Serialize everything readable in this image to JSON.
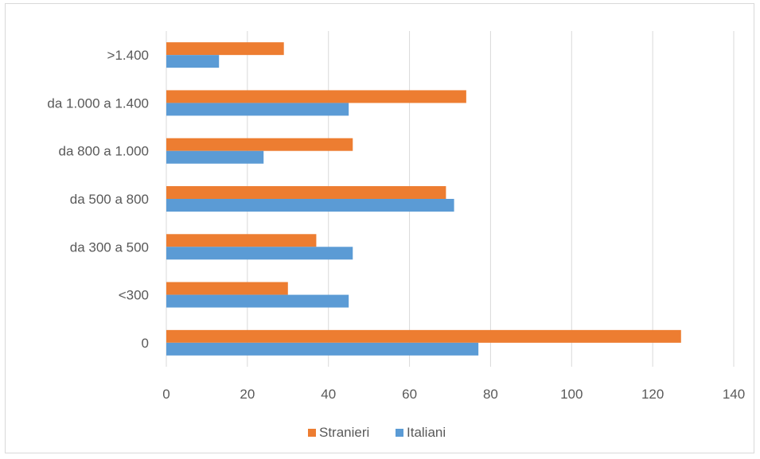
{
  "chart_data": {
    "type": "bar",
    "orientation": "horizontal",
    "categories": [
      "0",
      "<300",
      "da 300 a 500",
      "da 500 a 800",
      "da 800 a 1.000",
      "da 1.000 a 1.400",
      ">1.400"
    ],
    "series": [
      {
        "name": "Stranieri",
        "color": "#ED7D31",
        "values": [
          127,
          30,
          37,
          69,
          46,
          74,
          29
        ]
      },
      {
        "name": "Italiani",
        "color": "#5B9BD5",
        "values": [
          77,
          45,
          46,
          71,
          24,
          45,
          13
        ]
      }
    ],
    "xlim": [
      0,
      140
    ],
    "xticks": [
      "0",
      "20",
      "40",
      "60",
      "80",
      "100",
      "120",
      "140"
    ],
    "grid": true,
    "legend_position": "bottom",
    "title": "",
    "xlabel": "",
    "ylabel": ""
  }
}
